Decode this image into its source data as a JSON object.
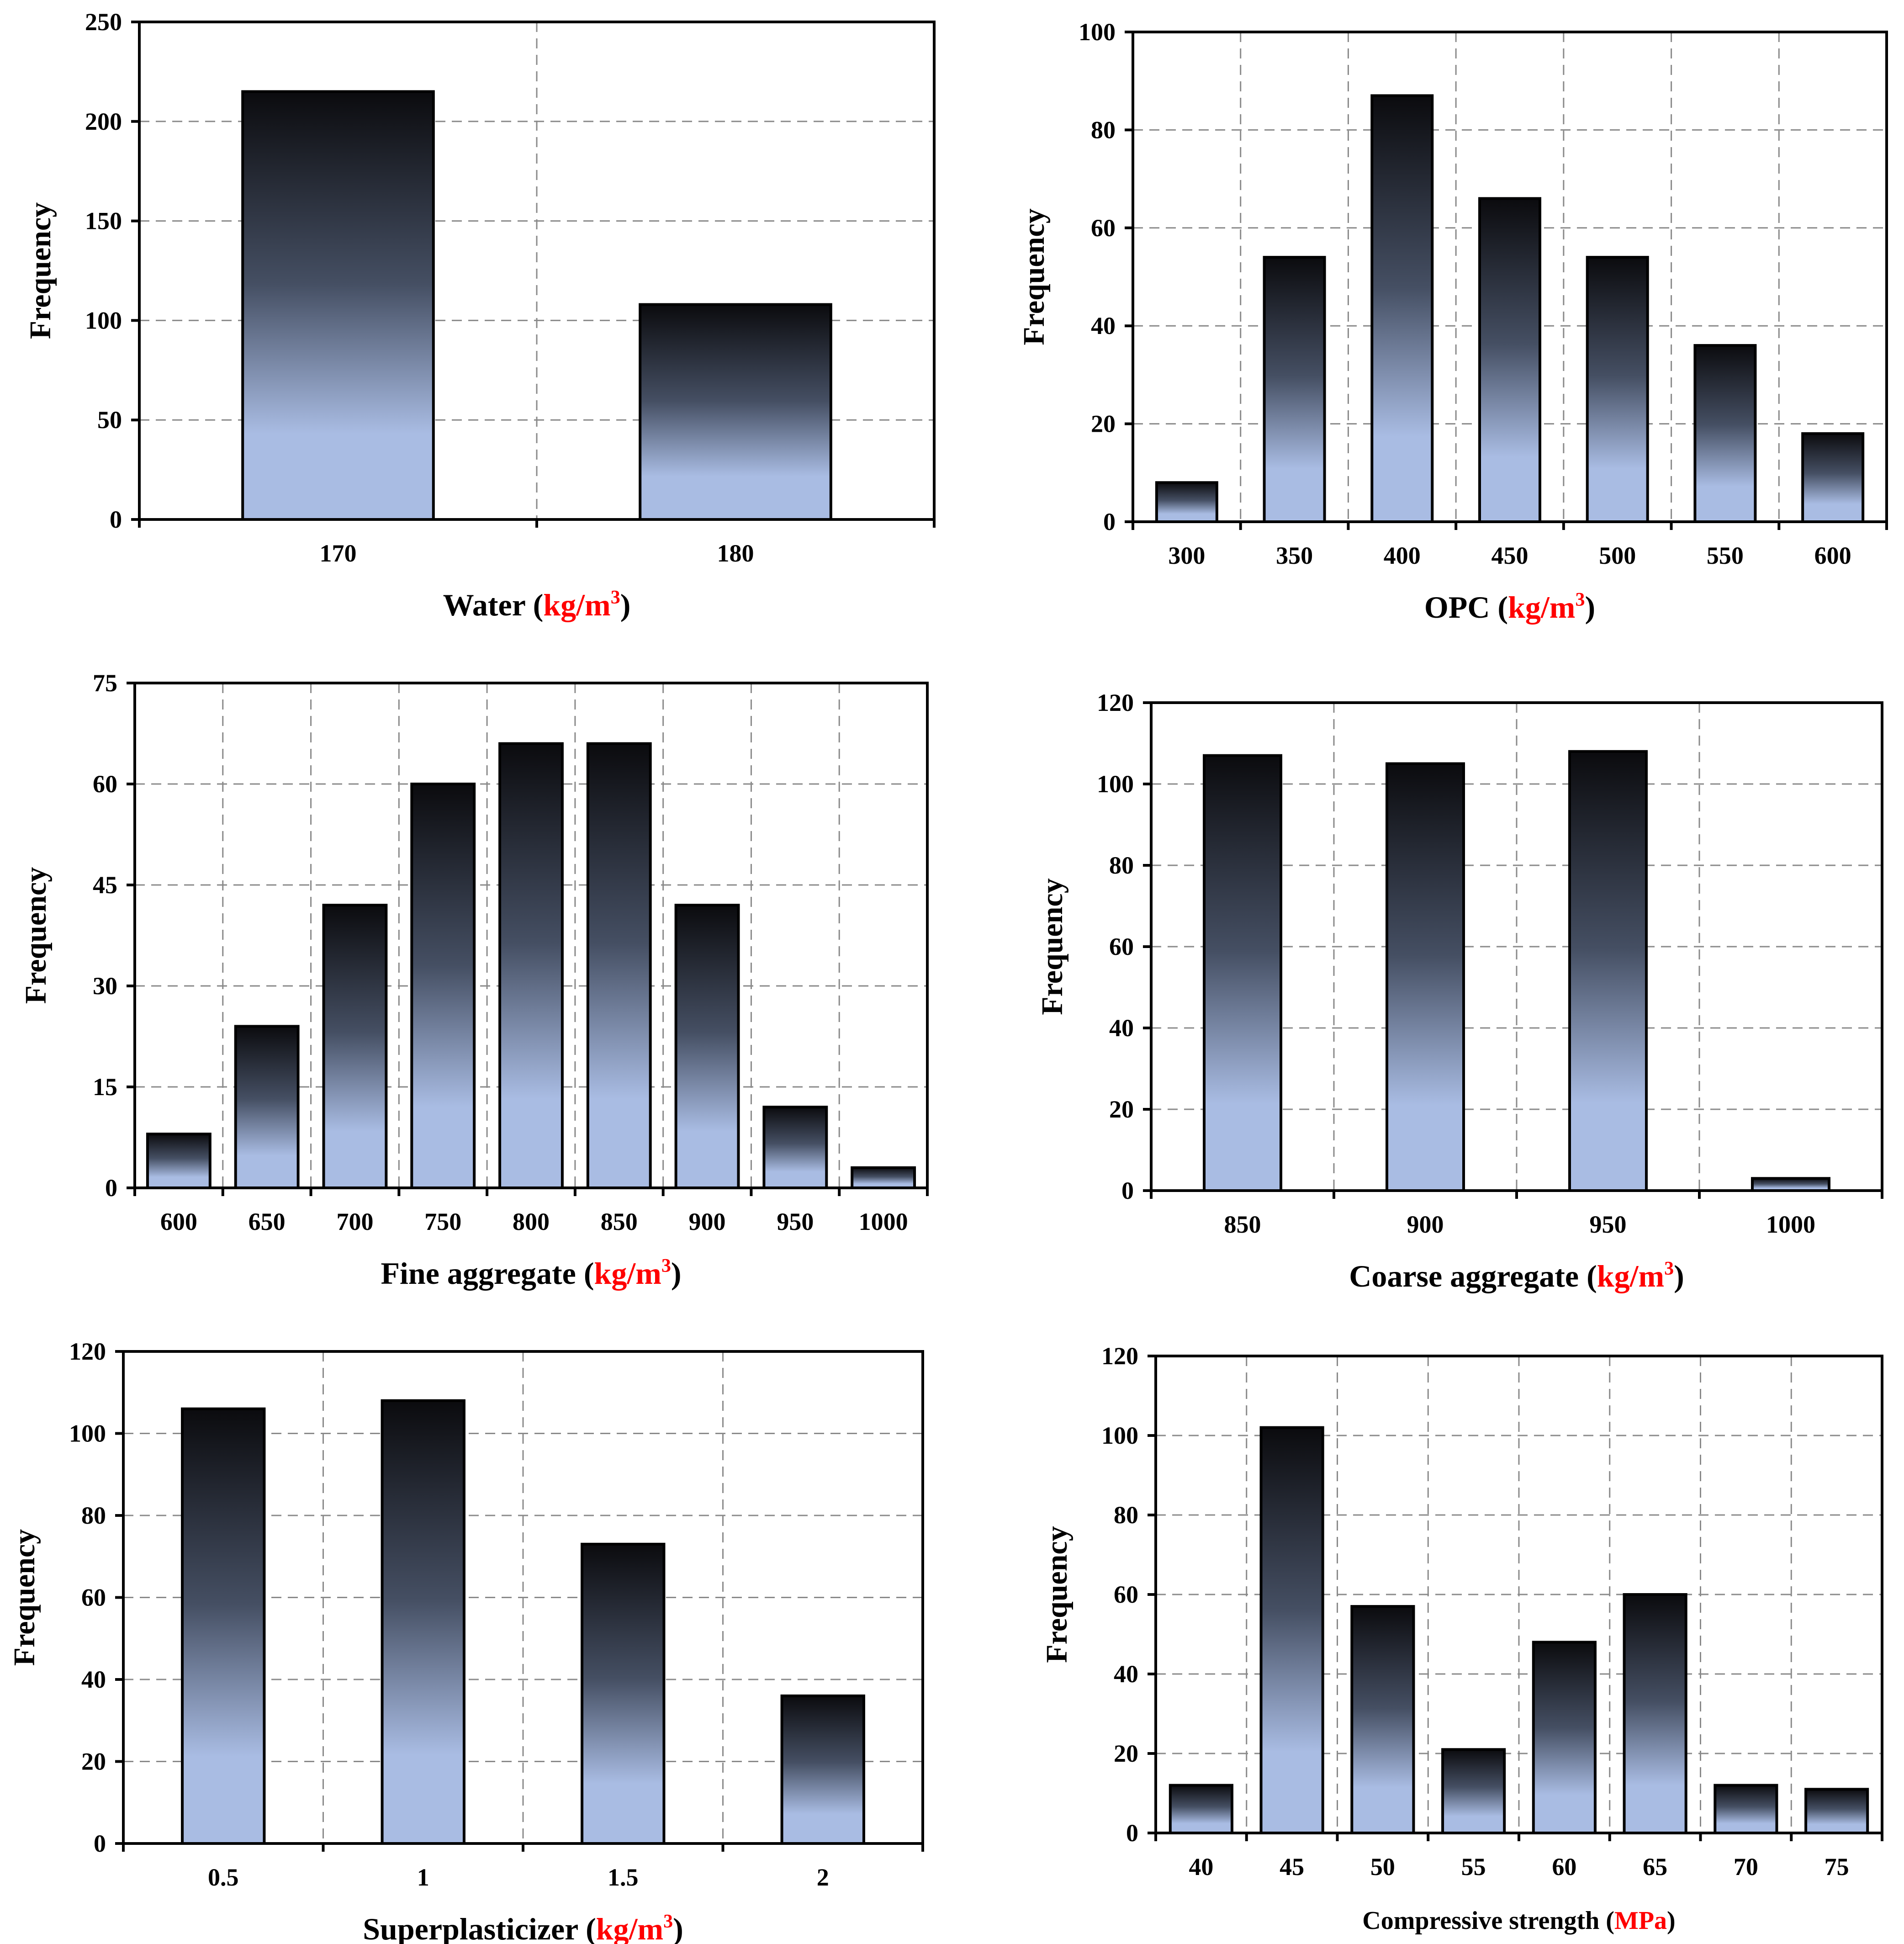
{
  "palette": {
    "bar_top": "#0b0b0e",
    "bar_mid": "#454f63",
    "bar_bottom": "#a9bce3",
    "unit_color": "#ff0000",
    "grid_color": "#8a8a8a"
  },
  "chart_data": [
    {
      "type": "bar",
      "xlabel_prefix": "Water (",
      "xlabel_unit": "kg/m",
      "xlabel_sup": "3",
      "xlabel_suffix": ")",
      "ylabel": "Frequency",
      "categories": [
        "170",
        "180"
      ],
      "values": [
        215,
        108
      ],
      "ylim": [
        0,
        250
      ],
      "yticks": [
        "0",
        "50",
        "100",
        "150",
        "200",
        "250"
      ],
      "grid": true
    },
    {
      "type": "bar",
      "xlabel_prefix": "OPC (",
      "xlabel_unit": "kg/m",
      "xlabel_sup": "3",
      "xlabel_suffix": ")",
      "ylabel": "Frequency",
      "categories": [
        "300",
        "350",
        "400",
        "450",
        "500",
        "550",
        "600"
      ],
      "values": [
        8,
        54,
        87,
        66,
        54,
        36,
        18
      ],
      "ylim": [
        0,
        100
      ],
      "yticks": [
        "0",
        "20",
        "40",
        "60",
        "80",
        "100"
      ],
      "grid": true
    },
    {
      "type": "bar",
      "xlabel_prefix": "Fine aggregate (",
      "xlabel_unit": "kg/m",
      "xlabel_sup": "3",
      "xlabel_suffix": ")",
      "ylabel": "Frequency",
      "categories": [
        "600",
        "650",
        "700",
        "750",
        "800",
        "850",
        "900",
        "950",
        "1000"
      ],
      "values": [
        8,
        24,
        42,
        60,
        66,
        66,
        42,
        12,
        3
      ],
      "ylim": [
        0,
        75
      ],
      "yticks": [
        "0",
        "15",
        "30",
        "45",
        "60",
        "75"
      ],
      "grid": true
    },
    {
      "type": "bar",
      "xlabel_prefix": "Coarse aggregate (",
      "xlabel_unit": "kg/m",
      "xlabel_sup": "3",
      "xlabel_suffix": ")",
      "ylabel": "Frequency",
      "categories": [
        "850",
        "900",
        "950",
        "1000"
      ],
      "values": [
        107,
        105,
        108,
        3
      ],
      "ylim": [
        0,
        120
      ],
      "yticks": [
        "0",
        "20",
        "40",
        "60",
        "80",
        "100",
        "120"
      ],
      "grid": true
    },
    {
      "type": "bar",
      "xlabel_prefix": "Superplasticizer (",
      "xlabel_unit": "kg/m",
      "xlabel_sup": "3",
      "xlabel_suffix": ")",
      "ylabel": "Frequency",
      "categories": [
        "0.5",
        "1",
        "1.5",
        "2"
      ],
      "values": [
        106,
        108,
        73,
        36
      ],
      "ylim": [
        0,
        120
      ],
      "yticks": [
        "0",
        "20",
        "40",
        "60",
        "80",
        "100",
        "120"
      ],
      "grid": true
    },
    {
      "type": "bar",
      "xlabel_prefix": "Compressive strength (",
      "xlabel_unit": "MPa",
      "xlabel_sup": "",
      "xlabel_suffix": ")",
      "ylabel": "Frequency",
      "categories": [
        "40",
        "45",
        "50",
        "55",
        "60",
        "65",
        "70",
        "75"
      ],
      "values": [
        12,
        102,
        57,
        21,
        48,
        60,
        12,
        11
      ],
      "ylim": [
        0,
        120
      ],
      "yticks": [
        "0",
        "20",
        "40",
        "60",
        "80",
        "100",
        "120"
      ],
      "grid": true
    }
  ]
}
